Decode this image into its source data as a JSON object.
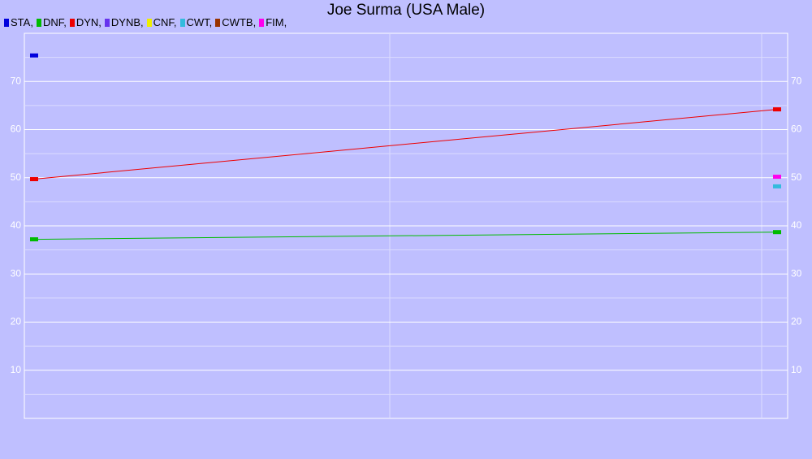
{
  "chart_data": {
    "type": "line",
    "title": "Joe Surma (USA Male)",
    "categories": [
      null,
      null
    ],
    "series": [
      {
        "name": "STA,",
        "color": "#0000dd",
        "values": [
          75.4,
          null
        ]
      },
      {
        "name": "DNF,",
        "color": "#00bb00",
        "values": [
          37.2,
          38.7
        ]
      },
      {
        "name": "DYN,",
        "color": "#ee0000",
        "values": [
          49.7,
          64.2
        ]
      },
      {
        "name": "DYNB,",
        "color": "#6633ee",
        "values": [
          null,
          null
        ]
      },
      {
        "name": "CNF,",
        "color": "#eeee00",
        "values": [
          null,
          null
        ]
      },
      {
        "name": "CWT,",
        "color": "#33bbdd",
        "values": [
          null,
          48.2
        ]
      },
      {
        "name": "CWTB,",
        "color": "#993300",
        "values": [
          null,
          null
        ]
      },
      {
        "name": "FIM,",
        "color": "#ff00ee",
        "values": [
          null,
          50.2
        ]
      }
    ],
    "ylim": [
      0,
      80
    ],
    "yticks": [
      10,
      20,
      30,
      40,
      50,
      60,
      70
    ],
    "yminor": [
      5,
      15,
      25,
      35,
      45,
      55,
      65,
      75
    ],
    "grid": true
  }
}
